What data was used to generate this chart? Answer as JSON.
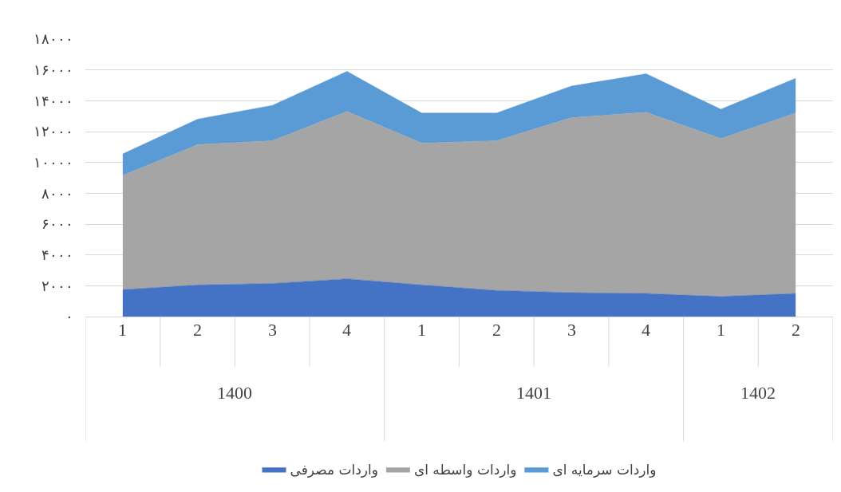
{
  "chart_data": {
    "type": "area",
    "stacked": true,
    "categories": [
      "1",
      "2",
      "3",
      "4",
      "1",
      "2",
      "3",
      "4",
      "1",
      "2"
    ],
    "annotations": [
      "1400",
      "1401",
      "1402"
    ],
    "series": [
      {
        "name": "واردات مصرفی",
        "color": "#4472c4",
        "values": [
          1750,
          2050,
          2150,
          2450,
          2050,
          1700,
          1550,
          1500,
          1300,
          1500
        ]
      },
      {
        "name": "واردات واسطه ای",
        "color": "#a5a5a5",
        "values": [
          7400,
          9100,
          9250,
          10850,
          9200,
          9700,
          11350,
          11750,
          10250,
          11700
        ]
      },
      {
        "name": "واردات سرمایه ای",
        "color": "#5b9bd5",
        "values": [
          1400,
          1650,
          2300,
          2600,
          1950,
          1800,
          2050,
          2500,
          1900,
          2250
        ]
      }
    ],
    "ylim": [
      0,
      18000
    ],
    "yticks": [
      {
        "value": 0,
        "label": "۰"
      },
      {
        "value": 2000,
        "label": "۲۰۰۰"
      },
      {
        "value": 4000,
        "label": "۴۰۰۰"
      },
      {
        "value": 6000,
        "label": "۶۰۰۰"
      },
      {
        "value": 8000,
        "label": "۸۰۰۰"
      },
      {
        "value": 10000,
        "label": "۱۰۰۰۰"
      },
      {
        "value": 12000,
        "label": "۱۲۰۰۰"
      },
      {
        "value": 14000,
        "label": "۱۴۰۰۰"
      },
      {
        "value": 16000,
        "label": "۱۶۰۰۰"
      },
      {
        "value": 18000,
        "label": "۱۸۰۰۰"
      }
    ],
    "grid": "y",
    "legend": "bottom"
  }
}
